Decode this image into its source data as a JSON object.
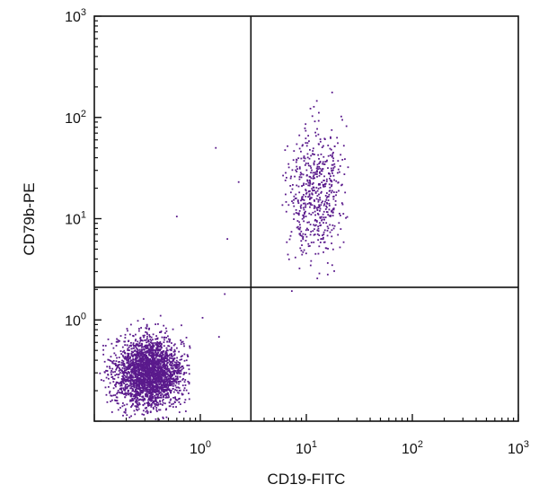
{
  "chart_data": {
    "type": "scatter",
    "title": "",
    "xlabel": "CD19-FITC",
    "ylabel": "CD79b-PE",
    "x_scale": "log",
    "y_scale": "log",
    "xlim": [
      0.1,
      1000
    ],
    "ylim": [
      0.1,
      1000
    ],
    "x_ticks": [
      {
        "base": "10",
        "exp": "0",
        "value": 1
      },
      {
        "base": "10",
        "exp": "1",
        "value": 10
      },
      {
        "base": "10",
        "exp": "2",
        "value": 100
      },
      {
        "base": "10",
        "exp": "3",
        "value": 1000
      }
    ],
    "y_ticks": [
      {
        "base": "10",
        "exp": "0",
        "value": 1
      },
      {
        "base": "10",
        "exp": "1",
        "value": 10
      },
      {
        "base": "10",
        "exp": "2",
        "value": 100
      },
      {
        "base": "10",
        "exp": "3",
        "value": 1000
      }
    ],
    "quadrant_gates": {
      "x": 3.0,
      "y": 2.1
    },
    "grid": false,
    "legend": "none",
    "point_color": "#5a1a8c",
    "series": [
      {
        "population": "CD19-/CD79b- cluster",
        "count": 2600,
        "center": {
          "x": 0.33,
          "y": 0.3
        },
        "spread_log10": {
          "x": 0.16,
          "y": 0.17
        },
        "range": {
          "x": [
            0.11,
            0.8
          ],
          "y": [
            0.1,
            1.3
          ]
        }
      },
      {
        "population": "CD19+/CD79b+ cluster",
        "count": 560,
        "center": {
          "x": 12,
          "y": 18
        },
        "spread_log10": {
          "x": 0.13,
          "y": 0.33
        },
        "range": {
          "x": [
            5.5,
            25
          ],
          "y": [
            1.3,
            190
          ]
        }
      },
      {
        "population": "outliers",
        "points": [
          {
            "x": 1.4,
            "y": 50
          },
          {
            "x": 2.3,
            "y": 23
          },
          {
            "x": 0.6,
            "y": 10.5
          },
          {
            "x": 1.8,
            "y": 6.3
          },
          {
            "x": 1.7,
            "y": 1.8
          },
          {
            "x": 1.05,
            "y": 1.05
          },
          {
            "x": 1.5,
            "y": 0.68
          }
        ]
      }
    ]
  }
}
